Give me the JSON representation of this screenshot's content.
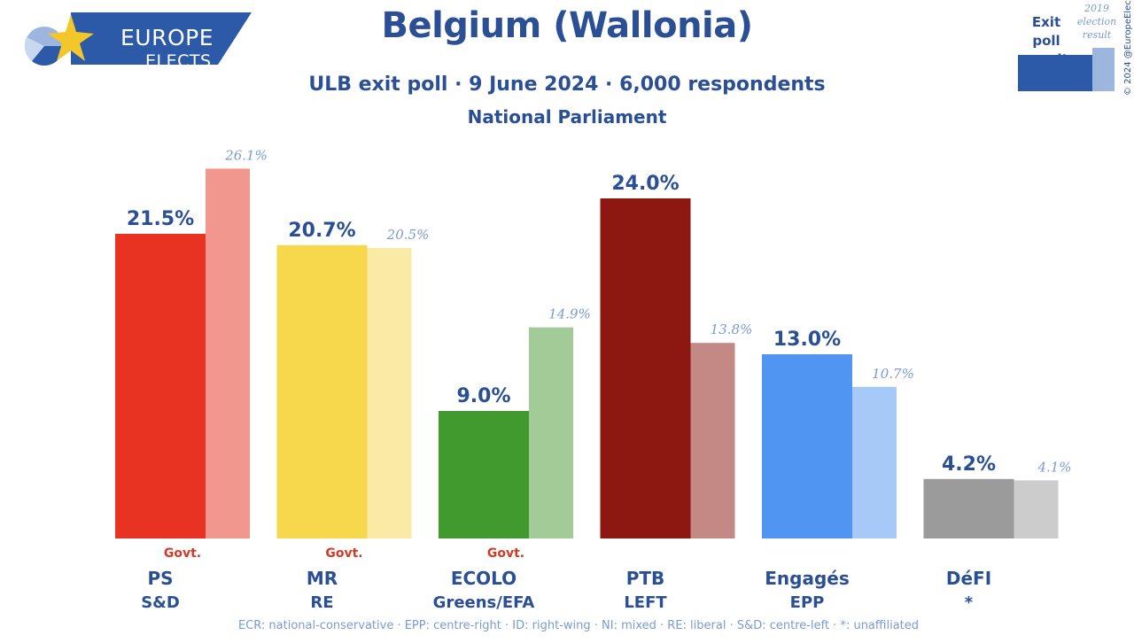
{
  "logo": {
    "line1": "EUROPE",
    "line2": "ELECTS"
  },
  "header": {
    "title": "Belgium (Wallonia)",
    "subtitle": "ULB exit poll · 9 June 2024 · 6,000 respondents",
    "subtitle2": "National Parliament"
  },
  "key": {
    "exit_label": "Exit poll result",
    "prev_label": "2019 election result",
    "exit_color": "#2d5aa8",
    "prev_color": "#9db6e0"
  },
  "copyright": "© 2024 @EuropeElects",
  "footnote": "ECR: national-conservative · EPP: centre-right · ID: right-wing · NI: mixed · RE: liberal · S&D: centre-left · *: unaffiliated",
  "chart_data": {
    "type": "bar",
    "title": "Belgium (Wallonia)",
    "categories": [
      "PS",
      "MR",
      "ECOLO",
      "PTB",
      "Engagés",
      "DéFI"
    ],
    "groups": [
      "S&D",
      "RE",
      "Greens/EFA",
      "LEFT",
      "EPP",
      "*"
    ],
    "government": [
      "Govt.",
      "Govt.",
      "Govt.",
      "",
      "",
      ""
    ],
    "series": [
      {
        "name": "Exit poll result",
        "values": [
          21.5,
          20.7,
          9.0,
          24.0,
          13.0,
          4.2
        ],
        "labels": [
          "21.5%",
          "20.7%",
          "9.0%",
          "24.0%",
          "13.0%",
          "4.2%"
        ]
      },
      {
        "name": "2019 election result",
        "values": [
          26.1,
          20.5,
          14.9,
          13.8,
          10.7,
          4.1
        ],
        "labels": [
          "26.1%",
          "20.5%",
          "14.9%",
          "13.8%",
          "10.7%",
          "4.1%"
        ]
      }
    ],
    "colors_main": [
      "#e83323",
      "#f7d84c",
      "#419a2e",
      "#8c1811",
      "#4f95f1",
      "#9b9b9b"
    ],
    "colors_prev": [
      "#f2978e",
      "#fbe9a6",
      "#a2cb98",
      "#c48985",
      "#a7c9f8",
      "#cccccc"
    ],
    "ylim": [
      0,
      27
    ]
  }
}
